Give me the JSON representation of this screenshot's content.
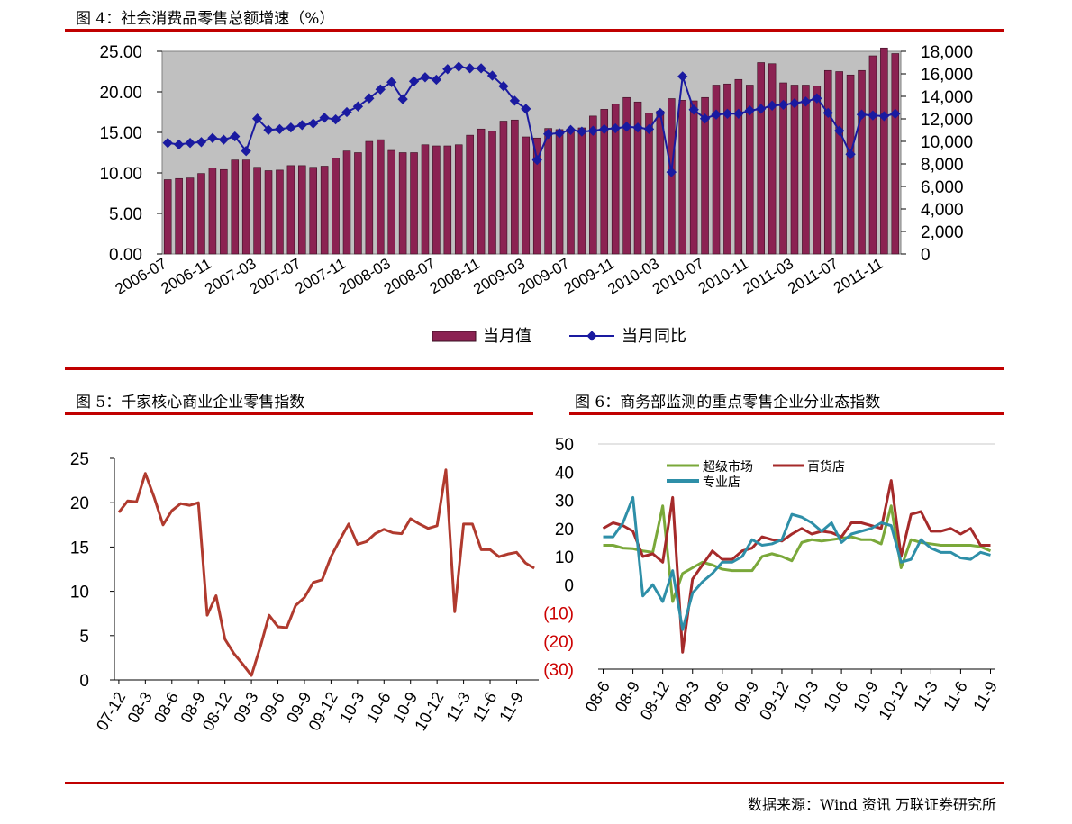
{
  "titles": {
    "fig4": "图 4：社会消费品零售总额增速（%）",
    "fig5": "图 5：千家核心商业企业零售指数",
    "fig6": "图 6：商务部监测的重点零售企业分业态指数"
  },
  "source": "数据来源：Wind 资讯  万联证券研究所",
  "colors": {
    "rule": "#c00000",
    "bar": "#8b2252",
    "line4": "#1a1aa0",
    "line5": "#b03a2e",
    "plotbg": "#c0c0c0",
    "super": "#7aa83a",
    "dept": "#a52a2a",
    "spec": "#2e8fa8"
  },
  "chart_data": [
    {
      "type": "bar",
      "title": "社会消费品零售总额增速（%）",
      "categories": [
        "2006-07",
        "2006-08",
        "2006-09",
        "2006-10",
        "2006-11",
        "2006-12",
        "2007-01",
        "2007-02",
        "2007-03",
        "2007-04",
        "2007-05",
        "2007-06",
        "2007-07",
        "2007-08",
        "2007-09",
        "2007-10",
        "2007-11",
        "2007-12",
        "2008-01",
        "2008-02",
        "2008-03",
        "2008-04",
        "2008-05",
        "2008-06",
        "2008-07",
        "2008-08",
        "2008-09",
        "2008-10",
        "2008-11",
        "2008-12",
        "2009-01",
        "2009-02",
        "2009-03",
        "2009-04",
        "2009-05",
        "2009-06",
        "2009-07",
        "2009-08",
        "2009-09",
        "2009-10",
        "2009-11",
        "2009-12",
        "2010-01",
        "2010-02",
        "2010-03",
        "2010-04",
        "2010-05",
        "2010-06",
        "2010-07",
        "2010-08",
        "2010-09",
        "2010-10",
        "2010-11",
        "2010-12",
        "2011-01",
        "2011-02",
        "2011-03",
        "2011-04",
        "2011-05",
        "2011-06",
        "2011-07",
        "2011-08",
        "2011-09",
        "2011-10",
        "2011-11",
        "2011-12"
      ],
      "x_tick_labels": [
        "2006-07",
        "2006-11",
        "2007-03",
        "2007-07",
        "2007-11",
        "2008-03",
        "2008-07",
        "2008-11",
        "2009-03",
        "2009-07",
        "2009-11",
        "2010-03",
        "2010-07",
        "2010-11",
        "2011-03",
        "2011-07",
        "2011-11"
      ],
      "series": [
        {
          "name": "当月值",
          "axis": "right",
          "values": [
            6600,
            6700,
            6750,
            7150,
            7650,
            7500,
            8350,
            8350,
            7700,
            7400,
            7450,
            7850,
            7850,
            7700,
            7800,
            8500,
            9150,
            9000,
            10000,
            10150,
            9200,
            9000,
            9000,
            9700,
            9600,
            9600,
            9700,
            10550,
            11100,
            10900,
            11800,
            11900,
            10400,
            10300,
            11150,
            11050,
            11000,
            11200,
            12250,
            12850,
            13300,
            13900,
            13500,
            12500,
            12700,
            13800,
            13650,
            13600,
            13900,
            15000,
            15100,
            15500,
            15000,
            17000,
            16900,
            15200,
            15000,
            15000,
            14900,
            16300,
            16200,
            15900,
            16300,
            17600,
            18300,
            17800
          ]
        },
        {
          "name": "当月同比",
          "axis": "left",
          "values": [
            13.7,
            13.5,
            13.7,
            13.8,
            14.3,
            14.1,
            14.5,
            12.7,
            16.7,
            15.3,
            15.4,
            15.6,
            15.9,
            16.1,
            16.8,
            16.6,
            17.5,
            18.2,
            19.2,
            20.3,
            21.2,
            19.1,
            21.3,
            21.8,
            21.5,
            22.8,
            23.1,
            22.9,
            22.9,
            22.0,
            20.7,
            18.9,
            17.9,
            11.6,
            14.8,
            14.9,
            15.3,
            15.1,
            15.2,
            15.4,
            15.5,
            15.7,
            15.6,
            15.4,
            17.4,
            10.1,
            21.9,
            17.8,
            16.7,
            17.2,
            17.3,
            17.3,
            17.7,
            17.9,
            18.3,
            18.4,
            18.6,
            18.8,
            19.2,
            17.4,
            15.2,
            12.3,
            17.2,
            17.1,
            17.0,
            17.3
          ]
        }
      ],
      "left_axis": {
        "ticks": [
          "0.00",
          "5.00",
          "10.00",
          "15.00",
          "20.00",
          "25.00"
        ],
        "ylim": [
          0,
          25
        ]
      },
      "right_axis": {
        "ticks": [
          "0",
          "2,000",
          "4,000",
          "6,000",
          "8,000",
          "10,000",
          "12,000",
          "14,000",
          "16,000",
          "18,000"
        ],
        "ylim": [
          0,
          18000
        ]
      },
      "legend": [
        "当月值",
        "当月同比"
      ]
    },
    {
      "type": "line",
      "title": "千家核心商业企业零售指数",
      "x_tick_labels": [
        "07-12",
        "08-3",
        "08-6",
        "08-9",
        "08-12",
        "09-3",
        "09-6",
        "09-9",
        "09-12",
        "10-3",
        "10-6",
        "10-9",
        "10-12",
        "11-3",
        "11-6",
        "11-9"
      ],
      "y_ticks": [
        "0",
        "5",
        "10",
        "15",
        "20",
        "25"
      ],
      "ylim": [
        0,
        25
      ],
      "series": [
        {
          "name": "零售指数",
          "values": [
            18.9,
            20.2,
            20.1,
            23.3,
            20.6,
            17.5,
            19.1,
            19.9,
            19.7,
            20.0,
            7.3,
            9.5,
            4.6,
            3.0,
            1.8,
            0.5,
            3.7,
            7.3,
            6.0,
            5.9,
            8.4,
            9.3,
            11.0,
            11.3,
            13.9,
            15.8,
            17.6,
            15.3,
            15.6,
            16.5,
            17.0,
            16.6,
            16.5,
            18.2,
            17.6,
            17.1,
            17.4,
            23.7,
            7.7,
            17.6,
            17.6,
            14.7,
            14.7,
            13.9,
            14.2,
            14.4,
            13.2,
            12.6
          ]
        }
      ]
    },
    {
      "type": "line",
      "title": "商务部监测的重点零售企业分业态指数",
      "x_tick_labels": [
        "08-6",
        "08-9",
        "08-12",
        "09-3",
        "09-6",
        "09-9",
        "09-12",
        "10-3",
        "10-6",
        "10-9",
        "10-12",
        "11-3",
        "11-6",
        "11-9"
      ],
      "y_ticks": [
        "50",
        "40",
        "30",
        "20",
        "10",
        "0",
        "(10)",
        "(20)",
        "(30)"
      ],
      "ylim": [
        -30,
        50
      ],
      "legend": [
        "超级市场",
        "百货店",
        "专业店"
      ],
      "series": [
        {
          "name": "超级市场",
          "values": [
            14.0,
            14.0,
            13.0,
            12.8,
            12.0,
            11.5,
            28.0,
            -6.0,
            4.0,
            6.0,
            8.0,
            7.0,
            5.5,
            5.0,
            5.0,
            5.0,
            10.0,
            11.0,
            10.0,
            8.5,
            15.0,
            16.0,
            15.5,
            16.0,
            16.5,
            17.0,
            16.0,
            16.0,
            14.5,
            28.0,
            6.0,
            16.0,
            15.0,
            14.5,
            14.0,
            14.0,
            14.0,
            14.0,
            13.5,
            12.0
          ]
        },
        {
          "name": "百货店",
          "values": [
            20.0,
            22.0,
            21.0,
            19.0,
            10.0,
            11.0,
            8.0,
            31.0,
            -24.0,
            2.0,
            7.0,
            12.0,
            9.0,
            9.0,
            12.0,
            13.0,
            17.0,
            16.0,
            15.5,
            18.0,
            20.0,
            18.0,
            19.0,
            18.5,
            17.0,
            22.0,
            22.0,
            21.0,
            20.0,
            37.0,
            10.0,
            25.0,
            26.0,
            19.0,
            19.0,
            20.0,
            18.0,
            20.0,
            14.0,
            14.0
          ]
        },
        {
          "name": "专业店",
          "values": [
            17.0,
            17.0,
            22.0,
            31.0,
            -4.0,
            0.0,
            -6.0,
            5.0,
            -16.0,
            -3.0,
            1.0,
            4.0,
            8.0,
            8.0,
            10.0,
            16.0,
            14.0,
            14.5,
            16.0,
            25.0,
            24.0,
            22.0,
            19.0,
            22.0,
            15.0,
            18.0,
            19.0,
            20.0,
            22.0,
            21.0,
            8.0,
            9.0,
            16.0,
            13.0,
            11.5,
            11.5,
            9.5,
            9.0,
            11.5,
            10.5
          ]
        }
      ]
    }
  ]
}
